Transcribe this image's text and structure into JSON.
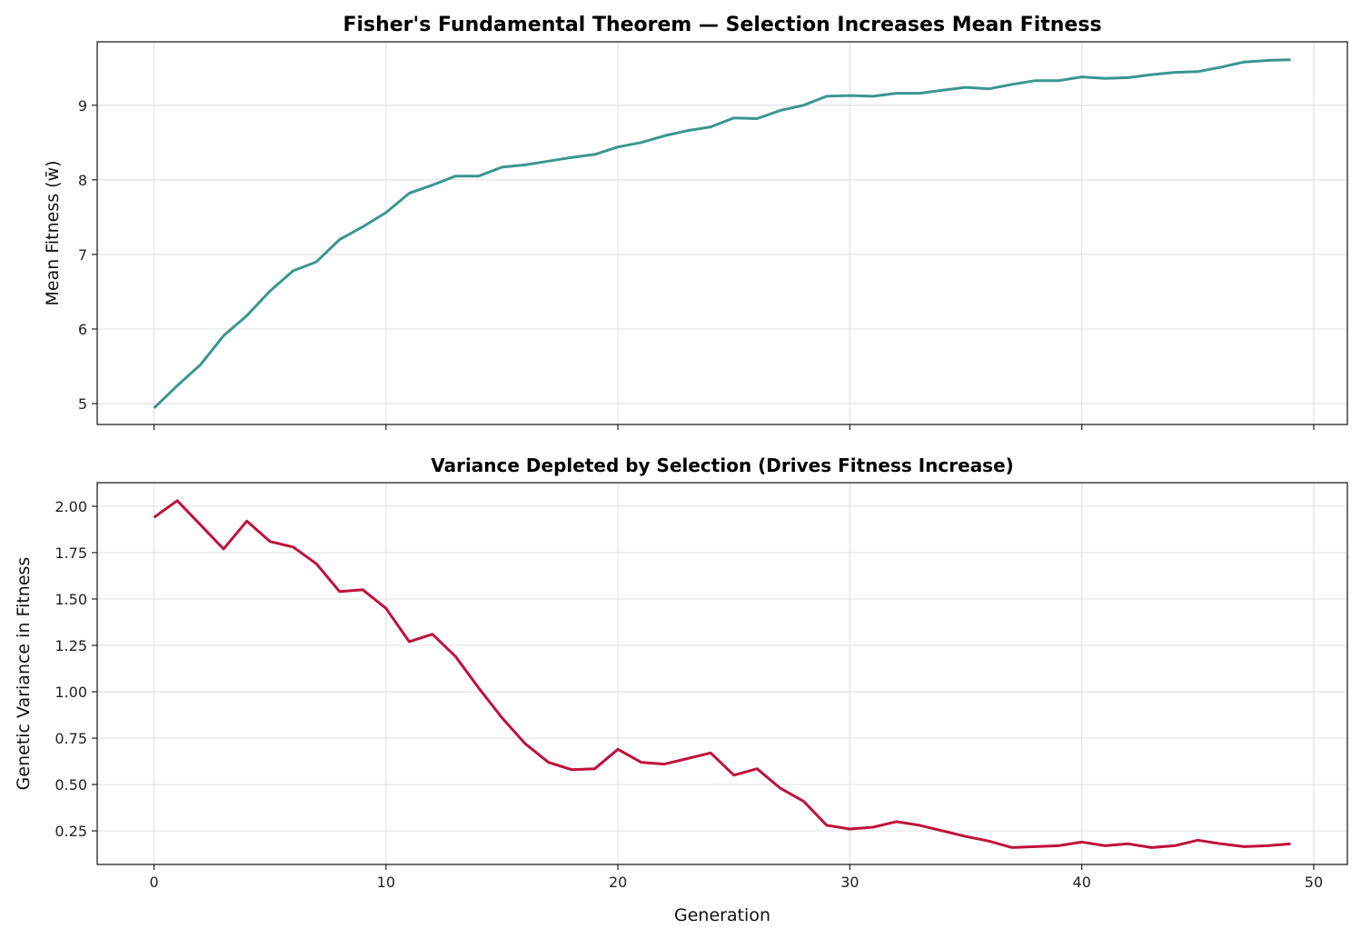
{
  "chart_data": [
    {
      "type": "line",
      "title": "Fisher's Fundamental Theorem — Selection Increases Mean Fitness",
      "xlabel": "",
      "ylabel": "Mean Fitness (w̄)",
      "xlim": [
        -2.45,
        51.45
      ],
      "ylim": [
        4.72,
        9.85
      ],
      "xticks": [
        0,
        10,
        20,
        30,
        40,
        50
      ],
      "xtick_labels_shown": false,
      "yticks": [
        5,
        6,
        7,
        8,
        9
      ],
      "ytick_labels": [
        "5",
        "6",
        "7",
        "8",
        "9"
      ],
      "grid": true,
      "color": "#3a9690",
      "series": [
        {
          "x": [
            0,
            1,
            2,
            3,
            4,
            5,
            6,
            7,
            8,
            9,
            10,
            11,
            12,
            13,
            14,
            15,
            16,
            17,
            18,
            19,
            20,
            21,
            22,
            23,
            24,
            25,
            26,
            27,
            28,
            29,
            30,
            31,
            32,
            33,
            34,
            35,
            36,
            37,
            38,
            39,
            40,
            41,
            42,
            43,
            44,
            45,
            46,
            47,
            48,
            49
          ],
          "values": [
            4.94,
            5.24,
            5.52,
            5.91,
            6.18,
            6.51,
            6.78,
            6.9,
            7.2,
            7.37,
            7.56,
            7.82,
            7.93,
            8.05,
            8.05,
            8.17,
            8.2,
            8.25,
            8.3,
            8.34,
            8.44,
            8.5,
            8.59,
            8.66,
            8.71,
            8.83,
            8.82,
            8.93,
            9.0,
            9.12,
            9.13,
            9.12,
            9.16,
            9.16,
            9.2,
            9.24,
            9.22,
            9.28,
            9.33,
            9.33,
            9.38,
            9.36,
            9.37,
            9.41,
            9.44,
            9.45,
            9.51,
            9.58,
            9.6,
            9.61
          ]
        }
      ]
    },
    {
      "type": "line",
      "title": "Variance Depleted by Selection (Drives Fitness Increase)",
      "xlabel": "Generation",
      "ylabel": "Genetic Variance in Fitness",
      "xlim": [
        -2.45,
        51.45
      ],
      "ylim": [
        0.069,
        2.127
      ],
      "xticks": [
        0,
        10,
        20,
        30,
        40,
        50
      ],
      "xtick_labels": [
        "0",
        "10",
        "20",
        "30",
        "40",
        "50"
      ],
      "yticks": [
        0.25,
        0.5,
        0.75,
        1.0,
        1.25,
        1.5,
        1.75,
        2.0
      ],
      "ytick_labels": [
        "0.25",
        "0.50",
        "0.75",
        "1.00",
        "1.25",
        "1.50",
        "1.75",
        "2.00"
      ],
      "grid": true,
      "color": "#c0113a",
      "series": [
        {
          "x": [
            0,
            1,
            2,
            3,
            4,
            5,
            6,
            7,
            8,
            9,
            10,
            11,
            12,
            13,
            14,
            15,
            16,
            17,
            18,
            19,
            20,
            21,
            22,
            23,
            24,
            25,
            26,
            27,
            28,
            29,
            30,
            31,
            32,
            33,
            34,
            35,
            36,
            37,
            38,
            39,
            40,
            41,
            42,
            43,
            44,
            45,
            46,
            47,
            48,
            49
          ],
          "values": [
            1.94,
            2.03,
            1.9,
            1.77,
            1.92,
            1.81,
            1.78,
            1.69,
            1.54,
            1.55,
            1.45,
            1.27,
            1.31,
            1.19,
            1.02,
            0.86,
            0.72,
            0.62,
            0.58,
            0.585,
            0.69,
            0.62,
            0.61,
            0.64,
            0.67,
            0.55,
            0.585,
            0.48,
            0.41,
            0.28,
            0.26,
            0.27,
            0.3,
            0.28,
            0.25,
            0.22,
            0.195,
            0.16,
            0.165,
            0.17,
            0.19,
            0.17,
            0.18,
            0.16,
            0.17,
            0.2,
            0.18,
            0.165,
            0.17,
            0.18
          ]
        }
      ]
    }
  ]
}
